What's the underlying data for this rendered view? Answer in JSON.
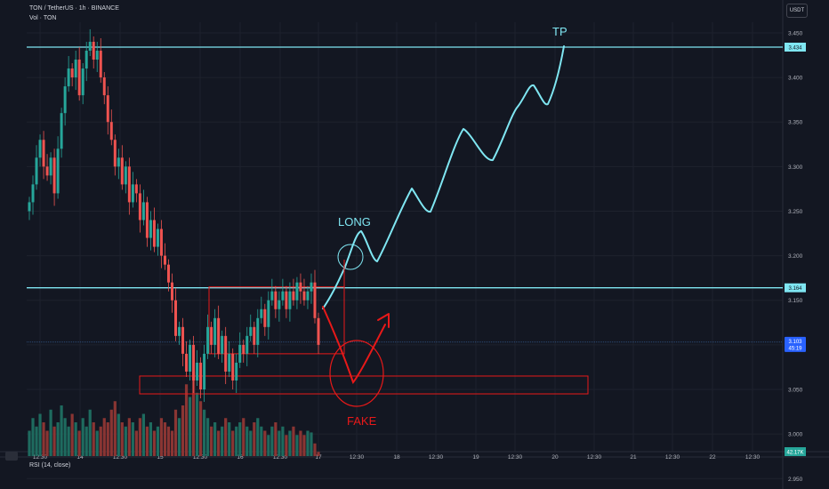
{
  "header": {
    "symbol_line": "TON / TetherUS · 1h · BINANCE",
    "volume_label": "Vol · TON",
    "currency": "USDT"
  },
  "indicator": {
    "rsi_label": "RSI (14, close)"
  },
  "colors": {
    "background": "#131722",
    "grid": "#1e222d",
    "bull": "#26a69a",
    "bear": "#ef5350",
    "bull_volume": "#1e6b5f",
    "bear_volume": "#8a3533",
    "annotation_blue": "#7fe6f2",
    "annotation_red": "#e81919",
    "axis_text": "#b2b5be"
  },
  "chart_data": {
    "type": "candlestick",
    "pair": "TON / TetherUS",
    "interval": "1h",
    "exchange": "BINANCE",
    "y_axis": {
      "ticks": [
        3.45,
        3.4,
        3.35,
        3.3,
        3.25,
        3.2,
        3.15,
        3.1,
        3.05,
        3.0,
        2.95
      ],
      "tick_labels": [
        "3.450",
        "3.400",
        "3.350",
        "3.300",
        "3.250",
        "3.200",
        "3.150",
        "3.100",
        "3.050",
        "3.000",
        "2.950"
      ],
      "range": [
        2.93,
        3.47
      ]
    },
    "x_axis": {
      "tick_labels": [
        "12:30",
        "14",
        "12:30",
        "15",
        "12:30",
        "16",
        "12:30",
        "17",
        "12:30",
        "18",
        "12:30",
        "19",
        "12:30",
        "20",
        "12:30",
        "21",
        "12:30",
        "22",
        "12:30"
      ]
    },
    "price_labels": [
      {
        "price": 3.434,
        "text": "3.434",
        "style": "line"
      },
      {
        "price": 3.164,
        "text": "3.164",
        "style": "line"
      },
      {
        "price": 3.103,
        "text": "3.103",
        "countdown": "45:19",
        "style": "current"
      }
    ],
    "volume_last_label": "42.17K",
    "horizontal_lines": [
      3.434,
      3.164,
      3.103
    ],
    "zones": {
      "range_box": {
        "top": 3.165,
        "bottom": 3.09
      },
      "support_box": {
        "top": 3.065,
        "bottom": 3.045
      }
    },
    "annotations": [
      "LONG",
      "TP",
      "FAKE"
    ],
    "candle_closes": [
      3.26,
      3.28,
      3.31,
      3.33,
      3.3,
      3.29,
      3.31,
      3.27,
      3.32,
      3.36,
      3.39,
      3.41,
      3.4,
      3.42,
      3.38,
      3.41,
      3.43,
      3.44,
      3.42,
      3.43,
      3.4,
      3.38,
      3.35,
      3.33,
      3.3,
      3.31,
      3.28,
      3.3,
      3.26,
      3.28,
      3.27,
      3.24,
      3.26,
      3.22,
      3.24,
      3.21,
      3.23,
      3.2,
      3.19,
      3.17,
      3.15,
      3.11,
      3.12,
      3.09,
      3.07,
      3.1,
      3.06,
      3.08,
      3.05,
      3.09,
      3.12,
      3.1,
      3.13,
      3.09,
      3.11,
      3.07,
      3.09,
      3.06,
      3.08,
      3.1,
      3.09,
      3.11,
      3.12,
      3.1,
      3.13,
      3.14,
      3.12,
      3.15,
      3.16,
      3.14,
      3.15,
      3.16,
      3.14,
      3.16,
      3.15,
      3.17,
      3.16,
      3.15,
      3.16,
      3.17,
      3.13,
      3.1
    ],
    "volumes": [
      0.3,
      0.45,
      0.35,
      0.5,
      0.4,
      0.3,
      0.55,
      0.35,
      0.4,
      0.6,
      0.45,
      0.35,
      0.5,
      0.4,
      0.3,
      0.45,
      0.35,
      0.55,
      0.4,
      0.3,
      0.35,
      0.45,
      0.4,
      0.55,
      0.65,
      0.5,
      0.4,
      0.35,
      0.45,
      0.4,
      0.3,
      0.45,
      0.5,
      0.35,
      0.4,
      0.3,
      0.35,
      0.45,
      0.4,
      0.35,
      0.3,
      0.55,
      0.45,
      0.6,
      0.85,
      0.7,
      1.0,
      0.75,
      0.65,
      0.55,
      0.45,
      0.35,
      0.4,
      0.3,
      0.35,
      0.45,
      0.4,
      0.3,
      0.35,
      0.4,
      0.45,
      0.35,
      0.3,
      0.4,
      0.45,
      0.35,
      0.3,
      0.25,
      0.35,
      0.4,
      0.3,
      0.35,
      0.25,
      0.3,
      0.35,
      0.25,
      0.3,
      0.25,
      0.3,
      0.28,
      0.15,
      0.05
    ]
  }
}
